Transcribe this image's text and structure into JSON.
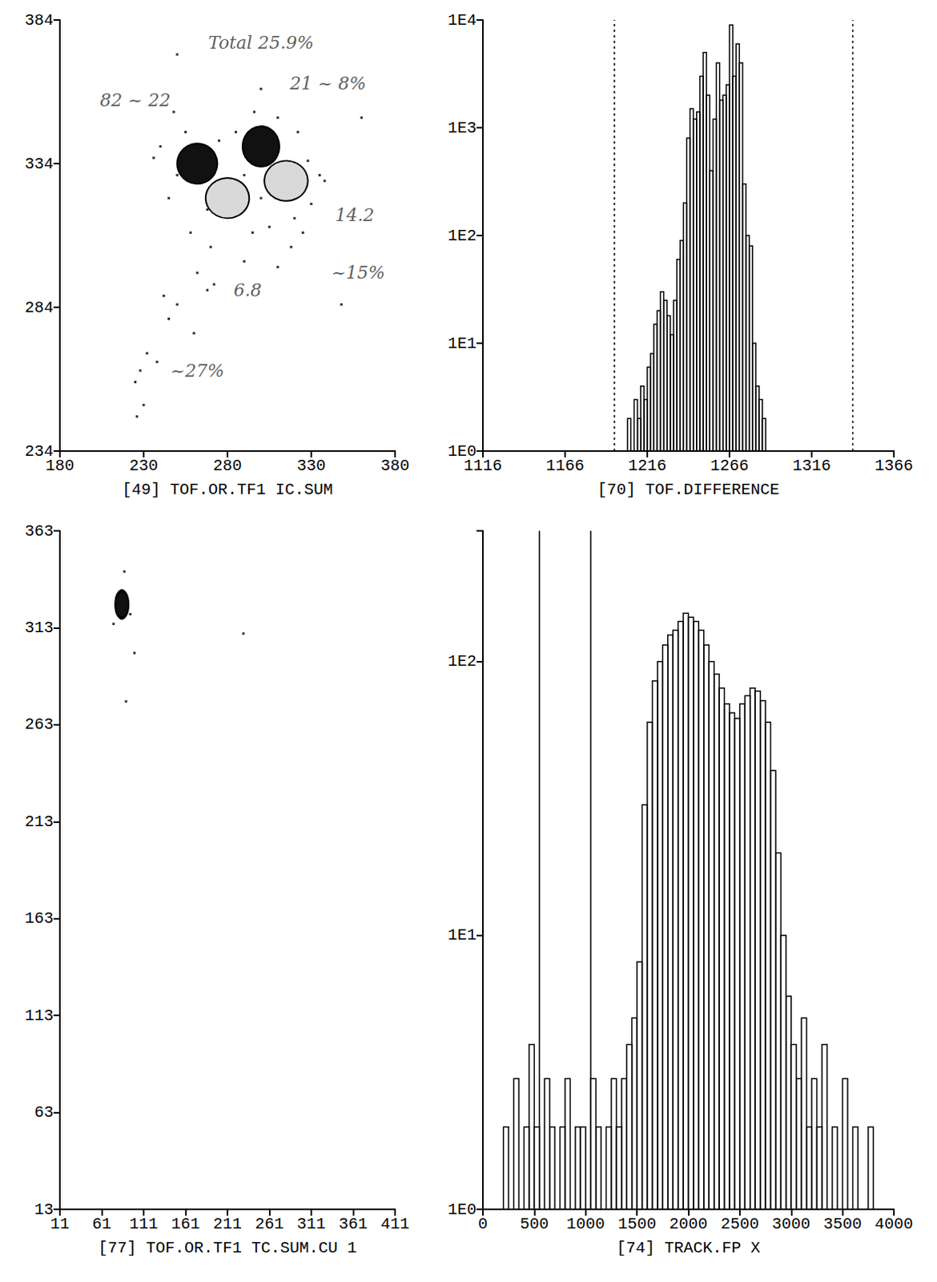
{
  "chart_data": [
    {
      "type": "scatter",
      "title": "[49] TOF.OR.TF1 IC.SUM",
      "xlim": [
        180,
        380
      ],
      "xticks": [
        180,
        230,
        280,
        330,
        380
      ],
      "ylim": [
        234,
        384
      ],
      "yticks": [
        234,
        284,
        334,
        384
      ],
      "x": [
        248,
        255,
        250,
        245,
        258,
        270,
        290,
        295,
        305,
        320,
        330,
        328,
        322,
        310,
        296,
        285,
        275,
        268,
        240,
        236,
        290,
        300,
        325,
        318,
        335,
        338,
        262,
        268,
        272,
        250,
        245,
        232,
        228,
        225,
        238,
        300,
        250,
        360,
        348,
        260,
        230,
        226,
        242,
        310
      ],
      "y": [
        352,
        345,
        330,
        322,
        310,
        305,
        300,
        310,
        312,
        315,
        320,
        335,
        345,
        350,
        352,
        345,
        342,
        318,
        340,
        336,
        330,
        322,
        310,
        305,
        330,
        328,
        296,
        290,
        292,
        285,
        280,
        268,
        262,
        258,
        265,
        360,
        372,
        350,
        285,
        275,
        250,
        246,
        288,
        298
      ],
      "blobs": [
        {
          "x": 262,
          "y": 334,
          "rx": 12,
          "ry": 7,
          "color": "#111111"
        },
        {
          "x": 280,
          "y": 322,
          "rx": 13,
          "ry": 7,
          "color": "#d9d9d9"
        },
        {
          "x": 300,
          "y": 340,
          "rx": 11,
          "ry": 7,
          "color": "#111111"
        },
        {
          "x": 315,
          "y": 328,
          "rx": 13,
          "ry": 7,
          "color": "#d9d9d9"
        }
      ],
      "annotations": [
        {
          "text": "Total 25.9%",
          "x": 300,
          "y": 376
        },
        {
          "text": "82 ~ 22",
          "x": 225,
          "y": 356
        },
        {
          "text": "21 ~ 8%",
          "x": 340,
          "y": 362
        },
        {
          "text": "14.2",
          "x": 356,
          "y": 316
        },
        {
          "text": "~15%",
          "x": 358,
          "y": 296
        },
        {
          "text": "6.8",
          "x": 292,
          "y": 290
        },
        {
          "text": "~27%",
          "x": 262,
          "y": 262
        }
      ]
    },
    {
      "type": "histogram",
      "title": "[70] TOF.DIFFERENCE",
      "log": "y",
      "xlim": [
        1116,
        1366
      ],
      "xticks": [
        1116,
        1166,
        1216,
        1266,
        1316,
        1366
      ],
      "ylim": [
        1,
        10000
      ],
      "yticks": [
        {
          "value": 1,
          "label": "1E0"
        },
        {
          "value": 10,
          "label": "1E1"
        },
        {
          "value": 100,
          "label": "1E2"
        },
        {
          "value": 1000,
          "label": "1E3"
        },
        {
          "value": 10000,
          "label": "1E4"
        }
      ],
      "bins": [
        1200,
        1202,
        1204,
        1206,
        1208,
        1210,
        1212,
        1214,
        1216,
        1218,
        1220,
        1222,
        1224,
        1226,
        1228,
        1230,
        1232,
        1234,
        1236,
        1238,
        1240,
        1242,
        1244,
        1246,
        1248,
        1250,
        1252,
        1254,
        1256,
        1258,
        1260,
        1262,
        1264,
        1266,
        1268,
        1270,
        1272,
        1274,
        1276,
        1278,
        1280,
        1282,
        1284,
        1286,
        1288,
        1290,
        1292,
        1294,
        1296,
        1298,
        1300
      ],
      "counts": [
        1,
        0,
        2,
        1,
        3,
        2,
        4,
        3,
        6,
        8,
        15,
        20,
        30,
        25,
        18,
        12,
        25,
        60,
        90,
        200,
        800,
        1500,
        1200,
        1400,
        3000,
        5000,
        2000,
        400,
        1200,
        4000,
        1800,
        2000,
        2500,
        9000,
        3000,
        6000,
        4000,
        300,
        100,
        80,
        10,
        4,
        3,
        2,
        1,
        1,
        0,
        1,
        0,
        1
      ],
      "gate_lines": {
        "values": [
          1196,
          1341
        ],
        "line_style": "dotted"
      }
    },
    {
      "type": "scatter",
      "title": "[77] TOF.OR.TF1 TC.SUM.CU 1",
      "xlim": [
        11,
        411
      ],
      "xticks": [
        11,
        61,
        111,
        161,
        211,
        261,
        311,
        361,
        411
      ],
      "ylim": [
        13,
        363
      ],
      "yticks": [
        13,
        63,
        113,
        163,
        213,
        263,
        313,
        363
      ],
      "x": [
        80,
        95,
        88,
        100,
        75,
        230,
        90
      ],
      "y": [
        330,
        320,
        342,
        300,
        315,
        310,
        275
      ],
      "blobs": [
        {
          "x": 85,
          "y": 325,
          "rx": 8,
          "ry": 7,
          "color": "#111111"
        }
      ],
      "annotations": []
    },
    {
      "type": "histogram",
      "title": "[74] TRACK.FP X",
      "log": "y",
      "xlim": [
        0,
        4000
      ],
      "xticks": [
        0,
        500,
        1000,
        1500,
        2000,
        2500,
        3000,
        3500,
        4000
      ],
      "ylim": [
        1,
        300
      ],
      "yticks": [
        {
          "value": 1,
          "label": "1E0"
        },
        {
          "value": 10,
          "label": "1E1"
        },
        {
          "value": 100,
          "label": "1E2"
        }
      ],
      "bins": [
        200,
        250,
        300,
        350,
        400,
        450,
        500,
        550,
        600,
        650,
        700,
        750,
        800,
        850,
        900,
        950,
        1000,
        1050,
        1100,
        1150,
        1200,
        1250,
        1300,
        1350,
        1400,
        1450,
        1500,
        1550,
        1600,
        1650,
        1700,
        1750,
        1800,
        1850,
        1900,
        1950,
        2000,
        2050,
        2100,
        2150,
        2200,
        2250,
        2300,
        2350,
        2400,
        2450,
        2500,
        2550,
        2600,
        2650,
        2700,
        2750,
        2800,
        2850,
        2900,
        2950,
        3000,
        3050,
        3100,
        3150,
        3200,
        3250,
        3300,
        3350,
        3400,
        3450,
        3500,
        3550,
        3600,
        3650,
        3700,
        3750,
        3800,
        3850,
        3900,
        3950,
        4000
      ],
      "counts": [
        2,
        1,
        3,
        1,
        2,
        4,
        2,
        1,
        3,
        2,
        1,
        2,
        3,
        1,
        2,
        2,
        1,
        3,
        2,
        1,
        2,
        3,
        2,
        3,
        4,
        5,
        8,
        30,
        60,
        85,
        100,
        115,
        125,
        130,
        140,
        150,
        145,
        140,
        130,
        115,
        100,
        90,
        80,
        70,
        65,
        62,
        70,
        75,
        80,
        78,
        72,
        60,
        40,
        20,
        10,
        6,
        4,
        3,
        5,
        2,
        3,
        2,
        4,
        1,
        2,
        1,
        3,
        1,
        2,
        1,
        1,
        2,
        1,
        1,
        1,
        1
      ],
      "gate_lines": {
        "values": [
          550,
          1050
        ],
        "line_style": "solid"
      }
    }
  ]
}
